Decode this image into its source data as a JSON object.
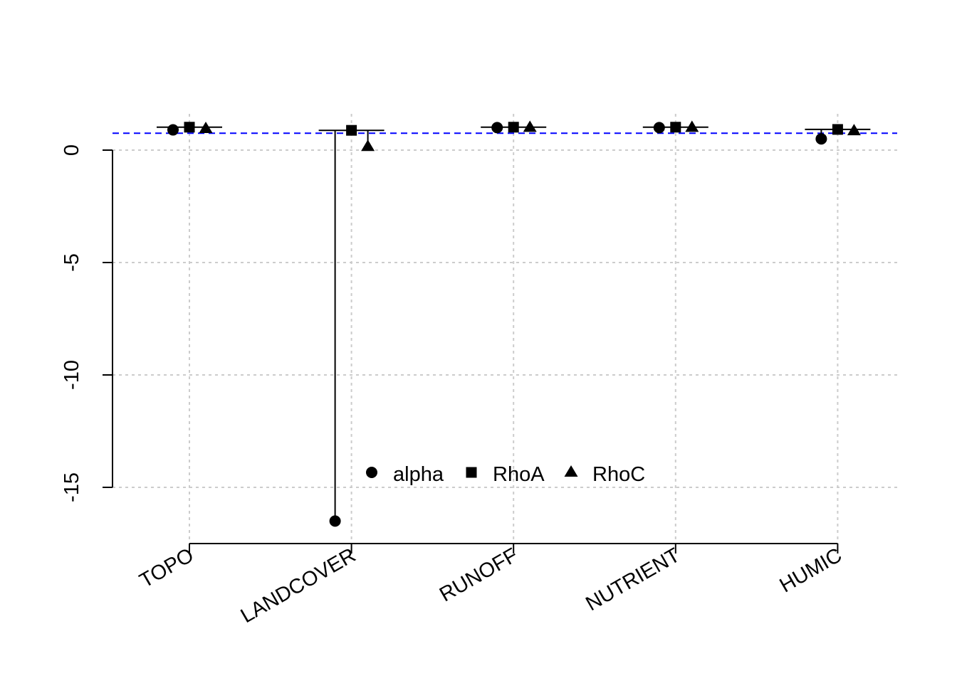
{
  "chart_data": {
    "type": "scatter",
    "title": "",
    "xlabel": "",
    "ylabel": "",
    "categories": [
      "TOPO",
      "LANDCOVER",
      "RUNOFF",
      "NUTRIENT",
      "HUMIC"
    ],
    "ylim": [
      -17.5,
      1.8
    ],
    "yticks": [
      0,
      -5,
      -10,
      -15
    ],
    "grid": true,
    "reference_line": {
      "y": 0.75,
      "color": "#0000ff",
      "style": "dashed"
    },
    "series": [
      {
        "name": "alpha",
        "marker": "circle",
        "values": [
          0.9,
          -16.5,
          1.0,
          1.0,
          0.5
        ]
      },
      {
        "name": "RhoA",
        "marker": "square",
        "values": [
          1.02,
          0.88,
          1.02,
          1.02,
          0.92
        ]
      },
      {
        "name": "RhoC",
        "marker": "triangle",
        "values": [
          0.95,
          0.15,
          1.0,
          1.0,
          0.85
        ]
      }
    ],
    "error_bars": [
      {
        "category": "TOPO",
        "low": 0.9,
        "high": 1.02
      },
      {
        "category": "LANDCOVER",
        "low": -16.5,
        "high": 0.88
      },
      {
        "category": "RUNOFF",
        "low": 1.0,
        "high": 1.02
      },
      {
        "category": "NUTRIENT",
        "low": 1.0,
        "high": 1.02
      },
      {
        "category": "HUMIC",
        "low": 0.5,
        "high": 0.92
      }
    ],
    "legend": {
      "placement": "bottom-center",
      "orientation": "horizontal"
    }
  }
}
